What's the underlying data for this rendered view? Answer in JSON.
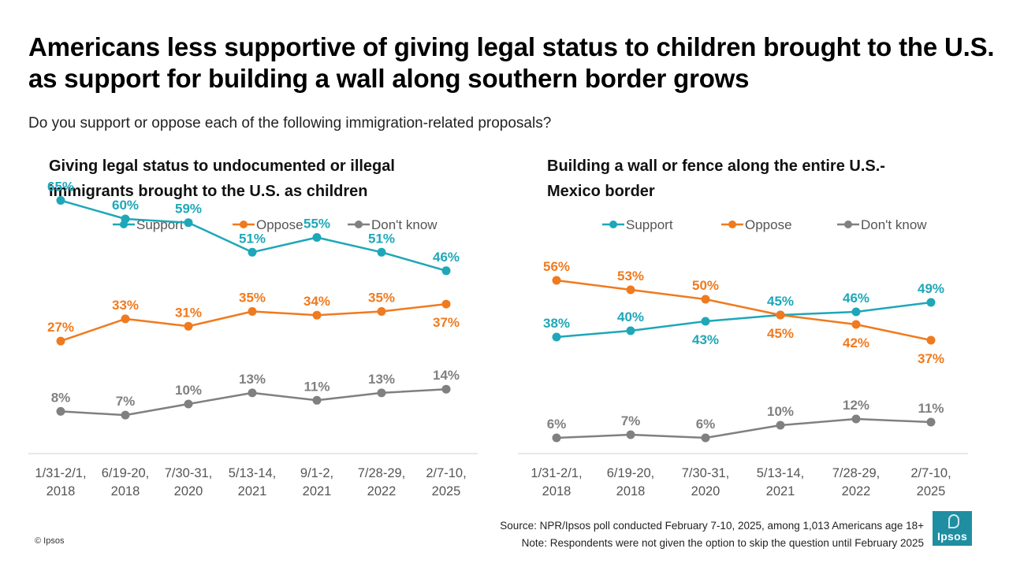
{
  "title": "Americans less supportive of giving legal status to children brought to the U.S. as support for building a wall along southern border grows",
  "subtitle": "Do you support or oppose each of the following immigration-related proposals?",
  "colors": {
    "support": "#1ea7b8",
    "oppose": "#f07a1e",
    "dontknow": "#808080"
  },
  "chart_data": [
    {
      "type": "line",
      "title": "Giving legal status to undocumented or illegal immigrants brought to the U.S. as children",
      "title_lines": [
        "Giving legal status to undocumented or illegal",
        "immigrants brought to the U.S. as children"
      ],
      "legend": [
        "Support",
        "Oppose",
        "Don't know"
      ],
      "categories": [
        [
          "1/31-2/1,",
          "2018"
        ],
        [
          "6/19-20,",
          "2018"
        ],
        [
          "7/30-31,",
          "2020"
        ],
        [
          "5/13-14,",
          "2021"
        ],
        [
          "9/1-2,",
          "2021"
        ],
        [
          "7/28-29,",
          "2022"
        ],
        [
          "2/7-10,",
          "2025"
        ]
      ],
      "ylim": [
        0,
        70
      ],
      "series": [
        {
          "name": "Support",
          "values": [
            65,
            60,
            59,
            51,
            55,
            51,
            46
          ],
          "labels": [
            "65%",
            "60%",
            "59%",
            "51%",
            "55%",
            "51%",
            "46%"
          ]
        },
        {
          "name": "Oppose",
          "values": [
            27,
            33,
            31,
            35,
            34,
            35,
            37
          ],
          "labels": [
            "27%",
            "33%",
            "31%",
            "35%",
            "34%",
            "35%",
            "37%"
          ]
        },
        {
          "name": "Don't know",
          "values": [
            8,
            7,
            10,
            13,
            11,
            13,
            14
          ],
          "labels": [
            "8%",
            "7%",
            "10%",
            "13%",
            "11%",
            "13%",
            "14%"
          ]
        }
      ]
    },
    {
      "type": "line",
      "title": "Building a wall or fence along the entire U.S.-Mexico border",
      "title_lines": [
        "Building a wall or fence along the entire U.S.-",
        "Mexico border"
      ],
      "legend": [
        "Support",
        "Oppose",
        "Don't know"
      ],
      "categories": [
        [
          "1/31-2/1,",
          "2018"
        ],
        [
          "6/19-20,",
          "2018"
        ],
        [
          "7/30-31,",
          "2020"
        ],
        [
          "5/13-14,",
          "2021"
        ],
        [
          "7/28-29,",
          "2022"
        ],
        [
          "2/7-10,",
          "2025"
        ]
      ],
      "ylim": [
        0,
        70
      ],
      "series": [
        {
          "name": "Support",
          "values": [
            38,
            40,
            43,
            45,
            46,
            49
          ],
          "labels": [
            "38%",
            "40%",
            "43%",
            "45%",
            "46%",
            "49%"
          ]
        },
        {
          "name": "Oppose",
          "values": [
            56,
            53,
            50,
            45,
            42,
            37
          ],
          "labels": [
            "56%",
            "53%",
            "50%",
            "45%",
            "42%",
            "37%"
          ]
        },
        {
          "name": "Don't know",
          "values": [
            6,
            7,
            6,
            10,
            12,
            11
          ],
          "labels": [
            "6%",
            "7%",
            "6%",
            "10%",
            "12%",
            "11%"
          ]
        }
      ]
    }
  ],
  "source": "Source: NPR/Ipsos poll conducted February 7-10, 2025, among 1,013 Americans age 18+",
  "note": "Note: Respondents were not given the option to skip the question until February 2025",
  "copyright": "© Ipsos",
  "logo_text": "Ipsos"
}
